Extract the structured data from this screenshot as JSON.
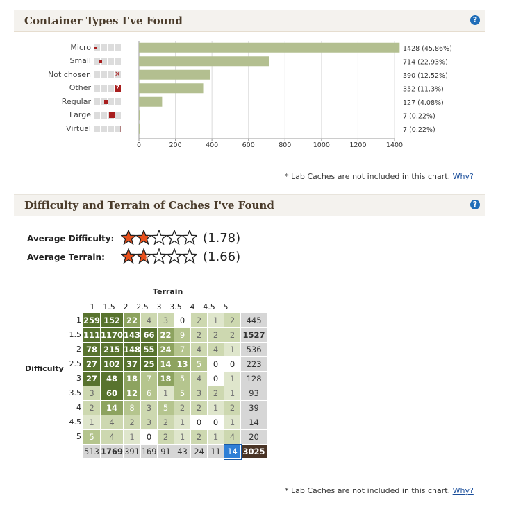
{
  "section1": {
    "title": "Container Types I've Found",
    "help_label": "?",
    "note_text": "* Lab Caches are not included in this chart.",
    "note_link": "Why?"
  },
  "chart_data": {
    "type": "bar",
    "orientation": "horizontal",
    "categories": [
      "Micro",
      "Small",
      "Not chosen",
      "Other",
      "Regular",
      "Large",
      "Virtual"
    ],
    "values": [
      1428,
      714,
      390,
      352,
      127,
      7,
      7
    ],
    "data_labels": [
      "1428 (45.86%)",
      "714 (22.93%)",
      "390 (12.52%)",
      "352 (11.3%)",
      "127 (4.08%)",
      "7 (0.22%)",
      "7 (0.22%)"
    ],
    "category_icons": [
      "micro-size-icon",
      "small-size-icon",
      "not-chosen-size-icon",
      "other-size-icon",
      "regular-size-icon",
      "large-size-icon",
      "virtual-size-icon"
    ],
    "xlim": [
      0,
      1400
    ],
    "xticks": [
      "0",
      "200",
      "400",
      "600",
      "800",
      "1000",
      "1200",
      "1400"
    ],
    "grid": true,
    "bar_color": "#b3bf90"
  },
  "section2": {
    "title": "Difficulty and Terrain of Caches I've Found",
    "help_label": "?",
    "avg_difficulty_label": "Average Difficulty:",
    "avg_difficulty_value": "(1.78)",
    "avg_difficulty": 1.78,
    "avg_terrain_label": "Average Terrain:",
    "avg_terrain_value": "(1.66)",
    "avg_terrain": 1.66,
    "terrain_label": "Terrain",
    "difficulty_label": "Difficulty",
    "terrain_headers": [
      "1",
      "1.5",
      "2",
      "2.5",
      "3",
      "3.5",
      "4",
      "4.5",
      "5"
    ],
    "difficulty_headers": [
      "1",
      "1.5",
      "2",
      "2.5",
      "3",
      "3.5",
      "4",
      "4.5",
      "5"
    ],
    "matrix": [
      [
        259,
        152,
        22,
        4,
        3,
        0,
        2,
        1,
        2
      ],
      [
        111,
        1170,
        143,
        66,
        22,
        9,
        2,
        2,
        2
      ],
      [
        78,
        215,
        148,
        55,
        24,
        7,
        4,
        4,
        1
      ],
      [
        27,
        102,
        37,
        25,
        14,
        13,
        5,
        0,
        0
      ],
      [
        27,
        48,
        18,
        7,
        18,
        5,
        4,
        0,
        1
      ],
      [
        3,
        60,
        12,
        6,
        1,
        5,
        3,
        2,
        1
      ],
      [
        2,
        14,
        8,
        3,
        5,
        2,
        2,
        1,
        2
      ],
      [
        1,
        4,
        2,
        3,
        2,
        1,
        0,
        0,
        1
      ],
      [
        5,
        4,
        1,
        0,
        2,
        1,
        2,
        1,
        4
      ]
    ],
    "row_totals": [
      "445",
      "1527",
      "536",
      "223",
      "128",
      "93",
      "39",
      "14",
      "20"
    ],
    "col_totals": [
      "513",
      "1769",
      "391",
      "169",
      "91",
      "43",
      "24",
      "11",
      "14"
    ],
    "grand_total": "3025",
    "note_text": "* Lab Caches are not included in this chart.",
    "note_link": "Why?"
  }
}
